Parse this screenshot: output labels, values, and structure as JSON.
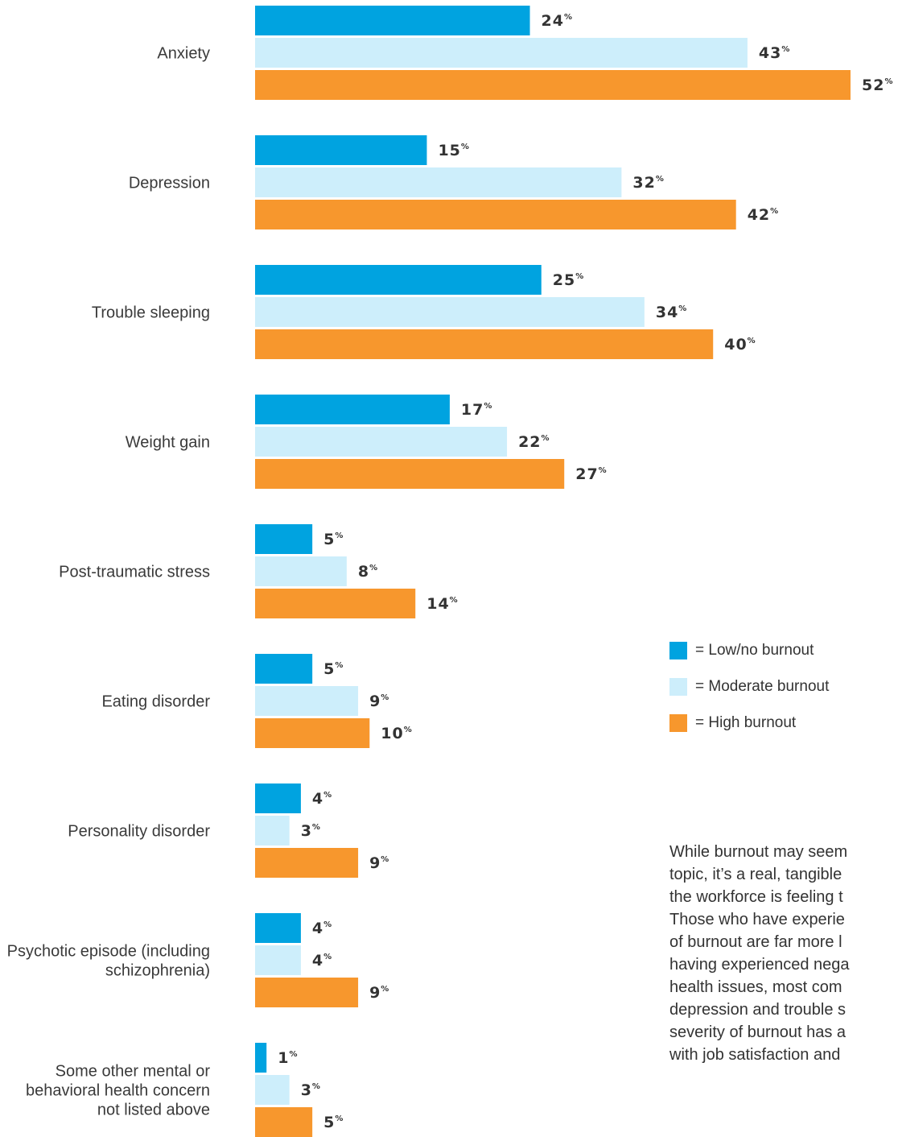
{
  "chart_data": {
    "type": "bar",
    "orientation": "horizontal",
    "categories": [
      [
        "Anxiety"
      ],
      [
        "Depression"
      ],
      [
        "Trouble sleeping"
      ],
      [
        "Weight gain"
      ],
      [
        "Post-traumatic stress"
      ],
      [
        "Eating disorder"
      ],
      [
        "Personality disorder"
      ],
      [
        "Psychotic episode (including",
        "schizophrenia)"
      ],
      [
        "Some other mental or",
        "behavioral health concern",
        "not listed above"
      ]
    ],
    "series": [
      {
        "name": "= Low/no burnout",
        "color": "#00a3e0",
        "values": [
          24,
          15,
          25,
          17,
          5,
          5,
          4,
          4,
          1
        ]
      },
      {
        "name": "= Moderate burnout",
        "color": "#cdeefb",
        "values": [
          43,
          32,
          34,
          22,
          8,
          9,
          3,
          4,
          3
        ]
      },
      {
        "name": "= High burnout",
        "color": "#f7972d",
        "values": [
          52,
          42,
          40,
          27,
          14,
          10,
          9,
          9,
          5
        ]
      }
    ],
    "value_suffix": "%",
    "xlim": [
      0,
      52
    ],
    "grid": false,
    "legend_position": "right"
  },
  "side_text": [
    "While burnout may seem",
    "topic, it’s a real, tangible",
    "the workforce is feeling t",
    "Those who have experie",
    "of burnout are far more l",
    "having experienced nega",
    "health issues, most com",
    "depression and trouble s",
    "severity of burnout has a",
    "with job satisfaction and"
  ]
}
